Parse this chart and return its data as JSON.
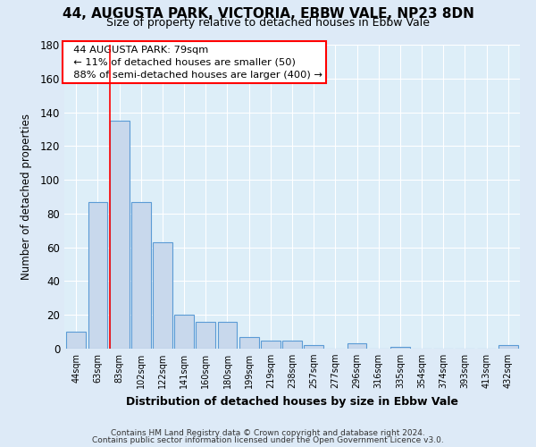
{
  "title": "44, AUGUSTA PARK, VICTORIA, EBBW VALE, NP23 8DN",
  "subtitle": "Size of property relative to detached houses in Ebbw Vale",
  "xlabel": "Distribution of detached houses by size in Ebbw Vale",
  "ylabel": "Number of detached properties",
  "bar_labels": [
    "44sqm",
    "63sqm",
    "83sqm",
    "102sqm",
    "122sqm",
    "141sqm",
    "160sqm",
    "180sqm",
    "199sqm",
    "219sqm",
    "238sqm",
    "257sqm",
    "277sqm",
    "296sqm",
    "316sqm",
    "335sqm",
    "354sqm",
    "374sqm",
    "393sqm",
    "413sqm",
    "432sqm"
  ],
  "bar_values": [
    10,
    87,
    135,
    87,
    63,
    20,
    16,
    16,
    7,
    5,
    5,
    2,
    0,
    3,
    0,
    1,
    0,
    0,
    0,
    0,
    2
  ],
  "bar_color": "#c8d8ec",
  "bar_edge_color": "#5b9bd5",
  "ylim": [
    0,
    180
  ],
  "yticks": [
    0,
    20,
    40,
    60,
    80,
    100,
    120,
    140,
    160,
    180
  ],
  "annotation_title": "44 AUGUSTA PARK: 79sqm",
  "annotation_line1": "← 11% of detached houses are smaller (50)",
  "annotation_line2": "88% of semi-detached houses are larger (400) →",
  "footer_line1": "Contains HM Land Registry data © Crown copyright and database right 2024.",
  "footer_line2": "Contains public sector information licensed under the Open Government Licence v3.0.",
  "bg_color": "#ddeaf7",
  "plot_bg_color": "#ddeef8",
  "grid_color": "#ffffff",
  "red_line_x": 1.575
}
